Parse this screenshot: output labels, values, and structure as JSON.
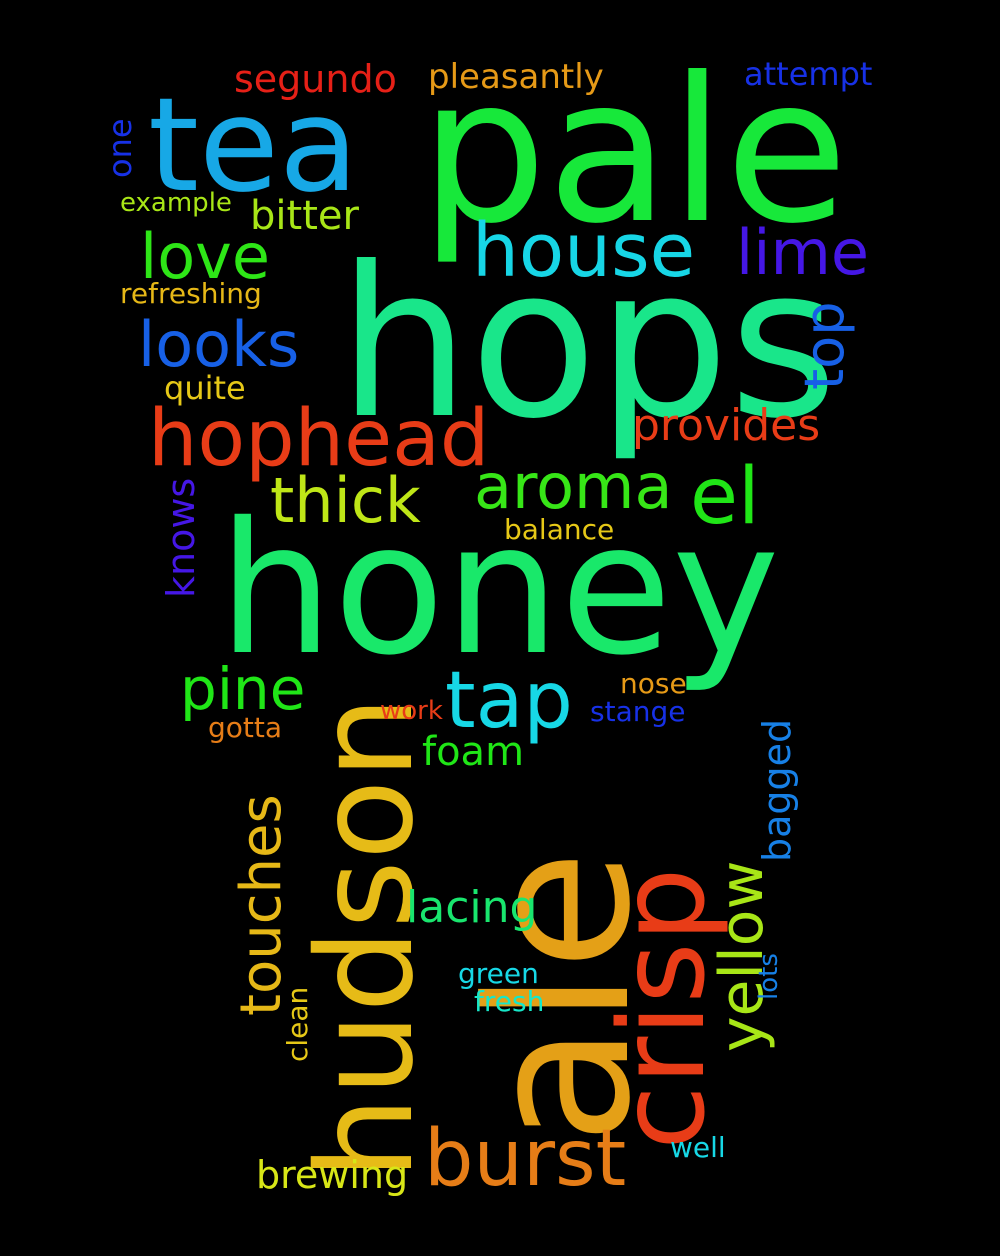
{
  "background_color": "#000000",
  "words": [
    {
      "text": "pale",
      "color": "#17e83a",
      "rotated": false
    },
    {
      "text": "hops",
      "color": "#19e68a",
      "rotated": false
    },
    {
      "text": "honey",
      "color": "#19e86a",
      "rotated": false
    },
    {
      "text": "ale",
      "color": "#e4a017",
      "rotated": true
    },
    {
      "text": "tea",
      "color": "#17a8e6",
      "rotated": false
    },
    {
      "text": "hudson",
      "color": "#e6bb17",
      "rotated": true
    },
    {
      "text": "crisp",
      "color": "#e83c17",
      "rotated": true
    },
    {
      "text": "hophead",
      "color": "#e83c17",
      "rotated": false
    },
    {
      "text": "house",
      "color": "#17d6e6",
      "rotated": false
    },
    {
      "text": "burst",
      "color": "#e67d17",
      "rotated": false
    },
    {
      "text": "tap",
      "color": "#17d8e6",
      "rotated": false
    },
    {
      "text": "aroma",
      "color": "#37e617",
      "rotated": false
    },
    {
      "text": "el",
      "color": "#20e617",
      "rotated": false
    },
    {
      "text": "thick",
      "color": "#bfe617",
      "rotated": false
    },
    {
      "text": "lime",
      "color": "#4517e6",
      "rotated": false
    },
    {
      "text": "looks",
      "color": "#1760e6",
      "rotated": false
    },
    {
      "text": "love",
      "color": "#2ee617",
      "rotated": false
    },
    {
      "text": "pine",
      "color": "#20e617",
      "rotated": false
    },
    {
      "text": "touches",
      "color": "#e6b817",
      "rotated": true
    },
    {
      "text": "yellow",
      "color": "#a8e617",
      "rotated": true
    },
    {
      "text": "top",
      "color": "#1760e6",
      "rotated": true
    },
    {
      "text": "provides",
      "color": "#e83c17",
      "rotated": false
    },
    {
      "text": "segundo",
      "color": "#e62017",
      "rotated": false
    },
    {
      "text": "bitter",
      "color": "#a8e617",
      "rotated": false
    },
    {
      "text": "foam",
      "color": "#20e617",
      "rotated": false
    },
    {
      "text": "lacing",
      "color": "#19e66e",
      "rotated": false
    },
    {
      "text": "bagged",
      "color": "#1780e6",
      "rotated": true
    },
    {
      "text": "brewing",
      "color": "#d8e617",
      "rotated": false
    },
    {
      "text": "knows",
      "color": "#4517e6",
      "rotated": true
    },
    {
      "text": "pleasantly",
      "color": "#e69a17",
      "rotated": false
    },
    {
      "text": "attempt",
      "color": "#1731e6",
      "rotated": false
    },
    {
      "text": "quite",
      "color": "#e6c817",
      "rotated": false
    },
    {
      "text": "refreshing",
      "color": "#e6b817",
      "rotated": false
    },
    {
      "text": "example",
      "color": "#a8e617",
      "rotated": false
    },
    {
      "text": "one",
      "color": "#1731e6",
      "rotated": true
    },
    {
      "text": "balance",
      "color": "#e6c817",
      "rotated": false
    },
    {
      "text": "nose",
      "color": "#e69a17",
      "rotated": false
    },
    {
      "text": "work",
      "color": "#e83c17",
      "rotated": false
    },
    {
      "text": "stange",
      "color": "#1731e6",
      "rotated": false
    },
    {
      "text": "gotta",
      "color": "#e67d17",
      "rotated": false
    },
    {
      "text": "clean",
      "color": "#e6c817",
      "rotated": true
    },
    {
      "text": "green",
      "color": "#17d8e6",
      "rotated": false
    },
    {
      "text": "fresh",
      "color": "#17e6c8",
      "rotated": false
    },
    {
      "text": "lots",
      "color": "#1780e6",
      "rotated": true
    },
    {
      "text": "well",
      "color": "#17d8e6",
      "rotated": false
    }
  ]
}
